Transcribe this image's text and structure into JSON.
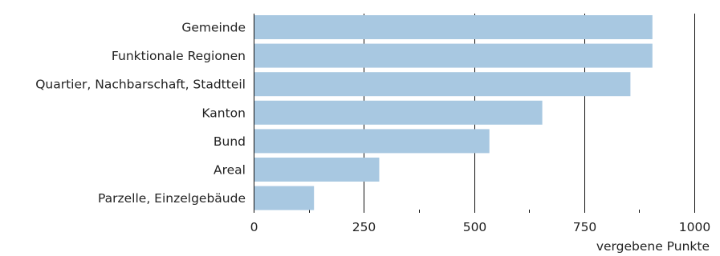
{
  "chart_data": {
    "type": "bar",
    "orientation": "horizontal",
    "categories": [
      "Gemeinde",
      "Funktionale Regionen",
      "Quartier, Nachbarschaft, Stadtteil",
      "Kanton",
      "Bund",
      "Areal",
      "Parzelle, Einzelgebäude"
    ],
    "values": [
      905,
      905,
      855,
      655,
      535,
      285,
      137
    ],
    "xlabel": "vergebene Punkte",
    "xlim": [
      0,
      1000
    ],
    "xticks": [
      0,
      250,
      500,
      750,
      1000
    ],
    "xtick_labels": [
      "0",
      "250",
      "500",
      "750",
      "1000"
    ],
    "grid": "vertical",
    "legend": "none",
    "colors": {
      "bar": "#a8c8e1",
      "grid": "#111111",
      "text": "#222222"
    }
  }
}
